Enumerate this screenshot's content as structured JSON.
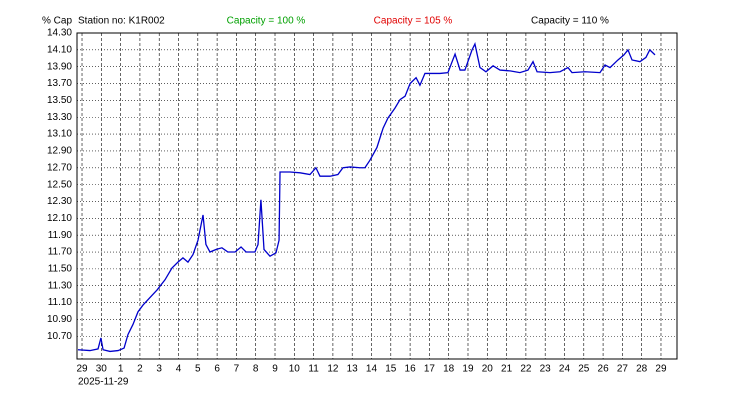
{
  "chart_data": {
    "type": "line",
    "title": "Station no: K1R002",
    "y_label": "% Cap",
    "x_label": "2025-11-29",
    "annotations": [
      {
        "text": "Capacity = 100 %",
        "color": "#00a000"
      },
      {
        "text": "Capacity = 105 %",
        "color": "#e00000"
      },
      {
        "text": "Capacity = 110 %",
        "color": "#000000"
      }
    ],
    "color": "#0000cc",
    "grid": true,
    "xlim": [
      -0.26,
      30.83
    ],
    "ylim": [
      10.43,
      14.3
    ],
    "yticks": [
      {
        "value": 14.3,
        "label": "14.30"
      },
      {
        "value": 14.1,
        "label": "14.10"
      },
      {
        "value": 13.9,
        "label": "13.90"
      },
      {
        "value": 13.7,
        "label": "13.70"
      },
      {
        "value": 13.5,
        "label": "13.50"
      },
      {
        "value": 13.3,
        "label": "13.30"
      },
      {
        "value": 13.1,
        "label": "13.10"
      },
      {
        "value": 12.9,
        "label": "12.90"
      },
      {
        "value": 12.7,
        "label": "12.70"
      },
      {
        "value": 12.5,
        "label": "12.50"
      },
      {
        "value": 12.3,
        "label": "12.30"
      },
      {
        "value": 12.1,
        "label": "12.10"
      },
      {
        "value": 11.9,
        "label": "11.90"
      },
      {
        "value": 11.7,
        "label": "11.70"
      },
      {
        "value": 11.5,
        "label": "11.50"
      },
      {
        "value": 11.3,
        "label": "11.30"
      },
      {
        "value": 11.1,
        "label": "11.10"
      },
      {
        "value": 10.9,
        "label": "10.90"
      },
      {
        "value": 10.7,
        "label": "10.70"
      }
    ],
    "xticks": [
      {
        "value": 0,
        "label": "29"
      },
      {
        "value": 1,
        "label": "30"
      },
      {
        "value": 2,
        "label": "1"
      },
      {
        "value": 3,
        "label": "2"
      },
      {
        "value": 4,
        "label": "3"
      },
      {
        "value": 5,
        "label": "4"
      },
      {
        "value": 6,
        "label": "5"
      },
      {
        "value": 7,
        "label": "6"
      },
      {
        "value": 8,
        "label": "7"
      },
      {
        "value": 9,
        "label": "8"
      },
      {
        "value": 10,
        "label": "9"
      },
      {
        "value": 11,
        "label": "10"
      },
      {
        "value": 12,
        "label": "11"
      },
      {
        "value": 13,
        "label": "12"
      },
      {
        "value": 14,
        "label": "13"
      },
      {
        "value": 15,
        "label": "14"
      },
      {
        "value": 16,
        "label": "15"
      },
      {
        "value": 17,
        "label": "16"
      },
      {
        "value": 18,
        "label": "17"
      },
      {
        "value": 19,
        "label": "18"
      },
      {
        "value": 20,
        "label": "19"
      },
      {
        "value": 21,
        "label": "20"
      },
      {
        "value": 22,
        "label": "21"
      },
      {
        "value": 23,
        "label": "22"
      },
      {
        "value": 24,
        "label": "23"
      },
      {
        "value": 25,
        "label": "24"
      },
      {
        "value": 26,
        "label": "25"
      },
      {
        "value": 27,
        "label": "26"
      },
      {
        "value": 28,
        "label": "27"
      },
      {
        "value": 29,
        "label": "28"
      },
      {
        "value": 30,
        "label": "29"
      }
    ],
    "x": [
      -0.21,
      0.41,
      0.83,
      0.98,
      1.09,
      1.45,
      1.87,
      2.18,
      2.38,
      2.64,
      2.9,
      3.16,
      3.52,
      3.89,
      4.3,
      4.66,
      4.97,
      5.23,
      5.49,
      5.75,
      6.01,
      6.27,
      6.42,
      6.63,
      6.94,
      7.25,
      7.56,
      7.93,
      8.24,
      8.5,
      8.96,
      9.12,
      9.27,
      9.43,
      9.74,
      10.05,
      10.21,
      10.26,
      10.78,
      11.3,
      11.81,
      12.12,
      12.33,
      12.85,
      13.26,
      13.52,
      13.89,
      14.4,
      14.66,
      14.92,
      15.28,
      15.6,
      15.85,
      16.22,
      16.48,
      16.74,
      17.0,
      17.31,
      17.51,
      17.77,
      18.55,
      18.96,
      19.33,
      19.59,
      19.84,
      20.21,
      20.36,
      20.62,
      20.93,
      21.3,
      21.66,
      22.18,
      22.69,
      23.11,
      23.37,
      23.58,
      24.25,
      24.77,
      25.18,
      25.39,
      26.06,
      26.84,
      27.1,
      27.36,
      27.77,
      28.08,
      28.29,
      28.5,
      28.91,
      29.22,
      29.42,
      29.69
    ],
    "values": [
      10.54,
      10.53,
      10.55,
      10.68,
      10.54,
      10.52,
      10.53,
      10.56,
      10.72,
      10.84,
      10.99,
      11.07,
      11.16,
      11.25,
      11.37,
      11.51,
      11.58,
      11.63,
      11.58,
      11.67,
      11.84,
      12.14,
      11.79,
      11.7,
      11.73,
      11.75,
      11.7,
      11.7,
      11.76,
      11.7,
      11.7,
      11.79,
      12.32,
      11.73,
      11.65,
      11.69,
      11.84,
      12.65,
      12.65,
      12.64,
      12.62,
      12.7,
      12.6,
      12.6,
      12.62,
      12.7,
      12.71,
      12.7,
      12.7,
      12.79,
      12.94,
      13.17,
      13.29,
      13.41,
      13.51,
      13.55,
      13.7,
      13.77,
      13.68,
      13.82,
      13.82,
      13.83,
      14.05,
      13.86,
      13.86,
      14.1,
      14.17,
      13.89,
      13.84,
      13.91,
      13.86,
      13.85,
      13.83,
      13.86,
      13.96,
      13.84,
      13.83,
      13.84,
      13.89,
      13.83,
      13.84,
      13.83,
      13.92,
      13.89,
      13.98,
      14.04,
      14.1,
      13.98,
      13.96,
      14.01,
      14.1,
      14.04
    ]
  }
}
